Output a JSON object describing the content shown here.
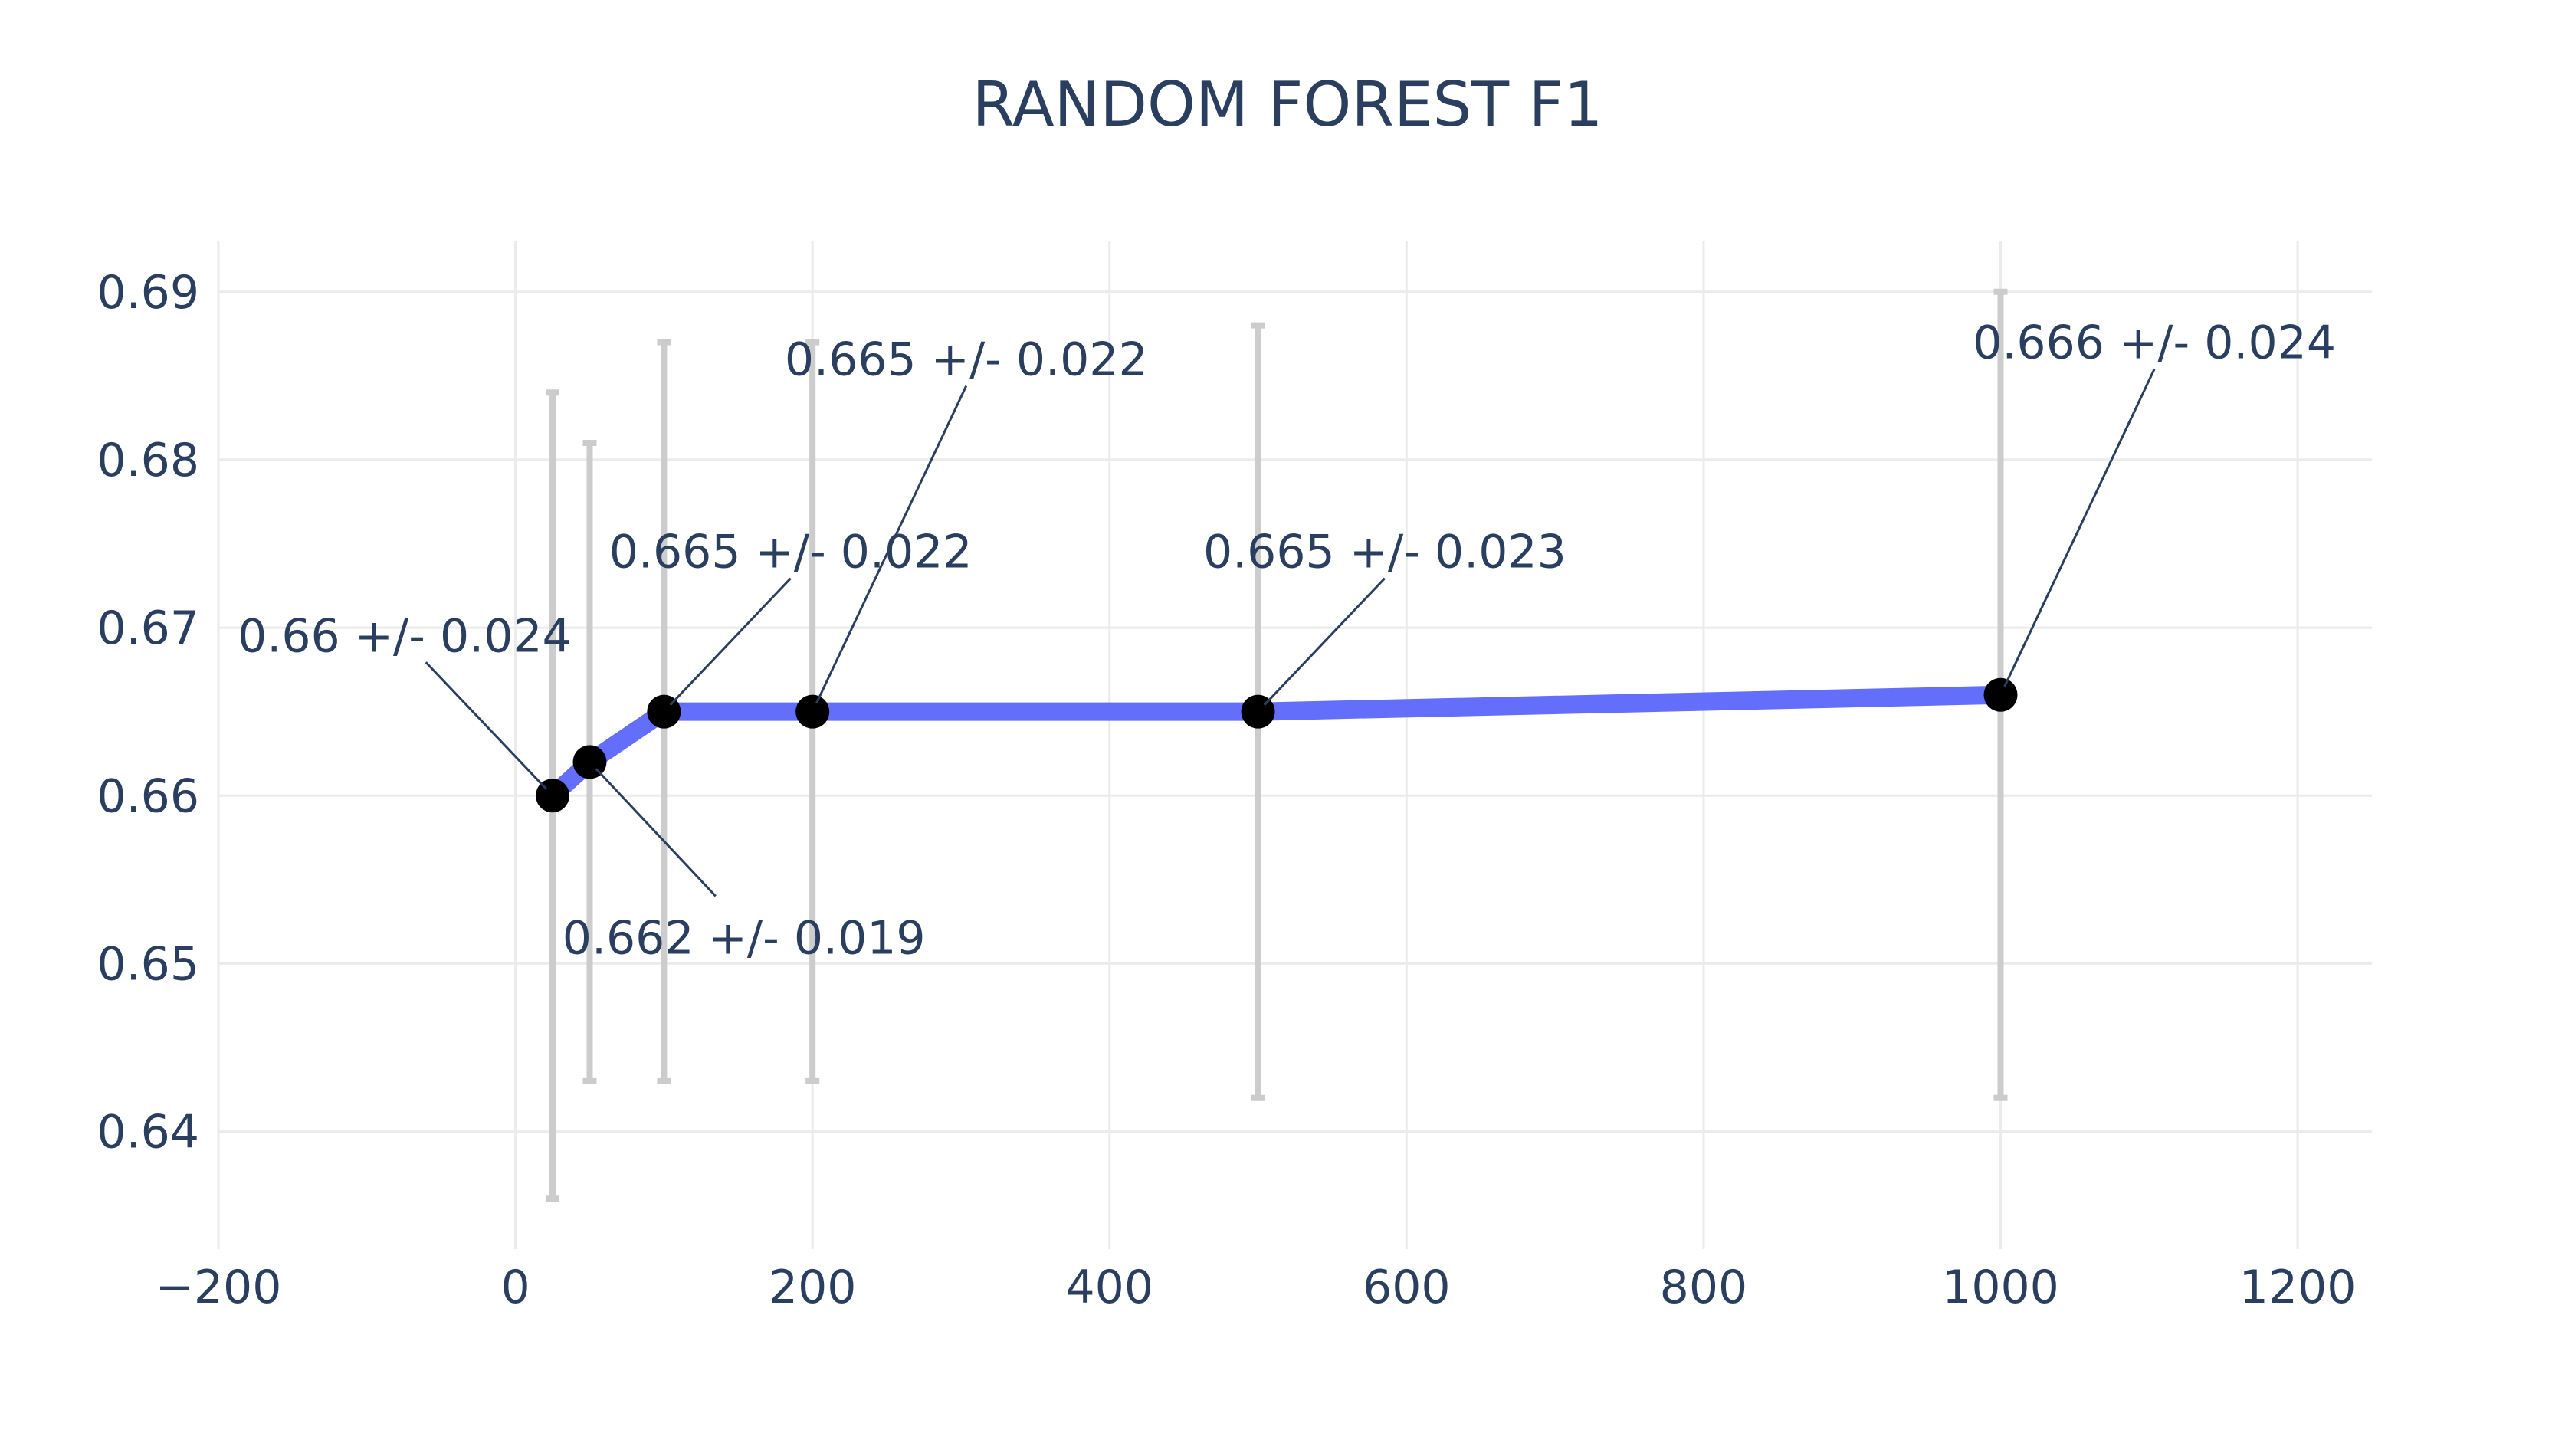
{
  "chart_data": {
    "type": "line",
    "title": "RANDOM FOREST F1",
    "xlabel": "",
    "ylabel": "",
    "xlim": [
      -200,
      1250
    ],
    "ylim": [
      0.633,
      0.693
    ],
    "grid": true,
    "x_ticks": [
      -200,
      0,
      200,
      400,
      600,
      800,
      1000,
      1200
    ],
    "x_tick_labels": [
      "−200",
      "0",
      "200",
      "400",
      "600",
      "800",
      "1000",
      "1200"
    ],
    "y_ticks": [
      0.64,
      0.65,
      0.66,
      0.67,
      0.68,
      0.69
    ],
    "y_tick_labels": [
      "0.64",
      "0.65",
      "0.66",
      "0.67",
      "0.68",
      "0.69"
    ],
    "series": [
      {
        "x": [
          25,
          50,
          100,
          200,
          500,
          1000
        ],
        "y": [
          0.66,
          0.662,
          0.665,
          0.665,
          0.665,
          0.666
        ],
        "error": [
          0.024,
          0.019,
          0.022,
          0.022,
          0.023,
          0.024
        ],
        "line_color": "#636efa",
        "marker_color": "#000000",
        "error_color": "#cccccc"
      }
    ],
    "annotations": [
      {
        "x": 25,
        "y": 0.66,
        "text": "0.66 +/- 0.024",
        "ax": -0.38,
        "ay": 0.4,
        "anchor": "end"
      },
      {
        "x": 50,
        "y": 0.662,
        "text": "0.662 +/- 0.019",
        "ax": 0.385,
        "ay": -0.41,
        "anchor": "start"
      },
      {
        "x": 100,
        "y": 0.665,
        "text": "0.665 +/- 0.022",
        "ax": 0.38,
        "ay": 0.4,
        "anchor": "middle"
      },
      {
        "x": 200,
        "y": 0.665,
        "text": "0.665 +/- 0.022",
        "ax": 0.42,
        "ay": 0.89,
        "anchor": "middle"
      },
      {
        "x": 500,
        "y": 0.665,
        "text": "0.665 +/- 0.023",
        "ax": 0.38,
        "ay": 0.4,
        "anchor": "middle"
      },
      {
        "x": 1000,
        "y": 0.666,
        "text": "0.666 +/- 0.024",
        "ax": 0.42,
        "ay": 0.89,
        "anchor": "middle"
      }
    ]
  }
}
